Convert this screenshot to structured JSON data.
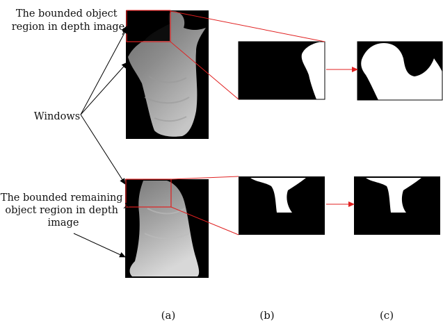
{
  "figure": {
    "annotations": {
      "top_region_label": [
        "The bounded object",
        "region in depth image"
      ],
      "windows_label": "Windows",
      "bottom_region_label": [
        "The bounded remaining",
        "object region in depth",
        "image"
      ]
    },
    "captions": {
      "a": "(a)",
      "b": "(b)",
      "c": "(c)"
    },
    "colors": {
      "bounding_box": "#e02020",
      "arrow_red": "#e02020",
      "arrow_black": "#000000",
      "mask_foreground": "#ffffff",
      "background": "#000000"
    }
  }
}
